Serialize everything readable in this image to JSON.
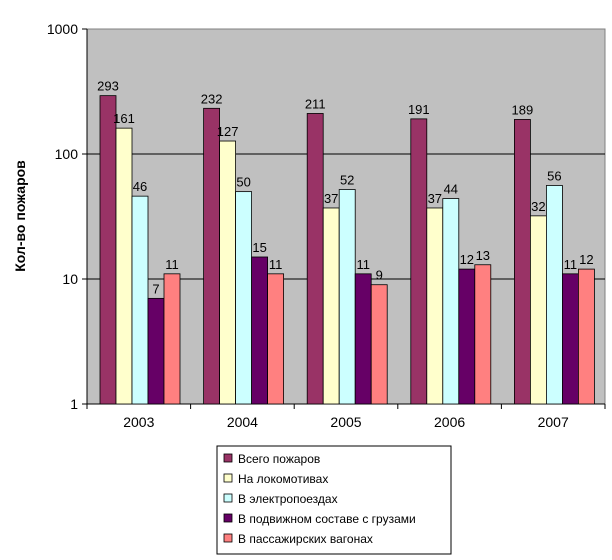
{
  "chart_data": {
    "type": "bar",
    "ylabel": "Кол-во пожаров",
    "yscale": "log",
    "ylim": [
      1,
      1000
    ],
    "yticks": [
      "1",
      "10",
      "100",
      "1000"
    ],
    "grid": true,
    "legend": "bottom-center",
    "categories": [
      "2003",
      "2004",
      "2005",
      "2006",
      "2007"
    ],
    "series": [
      {
        "name": "Всего пожаров",
        "color": "#993366",
        "values": [
          293,
          232,
          211,
          191,
          189
        ]
      },
      {
        "name": "На локомотивах",
        "color": "#FFFFCC",
        "values": [
          161,
          127,
          37,
          37,
          32
        ]
      },
      {
        "name": "В электропоездах",
        "color": "#CCFFFF",
        "values": [
          46,
          50,
          52,
          44,
          56
        ]
      },
      {
        "name": "В подвижном составе с грузами",
        "color": "#660066",
        "values": [
          7,
          15,
          11,
          12,
          11
        ]
      },
      {
        "name": "В пассажирских вагонах",
        "color": "#FF8080",
        "values": [
          11,
          11,
          9,
          13,
          12
        ]
      }
    ],
    "plot_bg": "#C0C0C0"
  }
}
